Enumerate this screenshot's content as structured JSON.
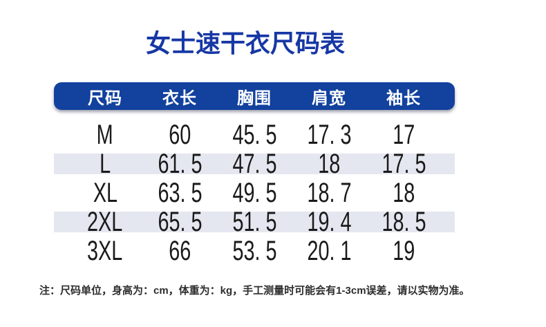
{
  "page": {
    "title": "女士速干衣尺码表",
    "note": "注：尺码单位，身高为：cm，体重为：kg，手工测量时可能会有1-3cm误差，请以实物为准。"
  },
  "colors": {
    "title_blue": "#1637A5",
    "header_bg": "#12419E",
    "header_text": "#FFFFFF",
    "stripe_bg": "#E5E7F0",
    "body_text": "#1A1A1A",
    "note_text": "#2D2D2D",
    "page_bg": "#FFFFFF"
  },
  "table": {
    "columns": [
      "尺码",
      "衣长",
      "胸围",
      "肩宽",
      "袖长"
    ],
    "rows": [
      {
        "size": "M",
        "values": [
          "60",
          "45. 5",
          "17. 3",
          "17"
        ],
        "striped": false
      },
      {
        "size": "L",
        "values": [
          "61. 5",
          "47. 5",
          "18",
          "17. 5"
        ],
        "striped": true
      },
      {
        "size": "XL",
        "values": [
          "63. 5",
          "49. 5",
          "18. 7",
          "18"
        ],
        "striped": false
      },
      {
        "size": "2XL",
        "values": [
          "65. 5",
          "51. 5",
          "19. 4",
          "18. 5"
        ],
        "striped": true
      },
      {
        "size": "3XL",
        "values": [
          "66",
          "53. 5",
          "20. 1",
          "19"
        ],
        "striped": false
      }
    ]
  },
  "chart_data": {
    "type": "table",
    "title": "女士速干衣尺码表",
    "columns": [
      "尺码",
      "衣长",
      "胸围",
      "肩宽",
      "袖长"
    ],
    "rows": [
      [
        "M",
        60,
        45.5,
        17.3,
        17
      ],
      [
        "L",
        61.5,
        47.5,
        18,
        17.5
      ],
      [
        "XL",
        63.5,
        49.5,
        18.7,
        18
      ],
      [
        "2XL",
        65.5,
        51.5,
        19.4,
        18.5
      ],
      [
        "3XL",
        66,
        53.5,
        20.1,
        19
      ]
    ],
    "units": "cm",
    "note": "注：尺码单位，身高为：cm，体重为：kg，手工测量时可能会有1-3cm误差，请以实物为准。"
  }
}
